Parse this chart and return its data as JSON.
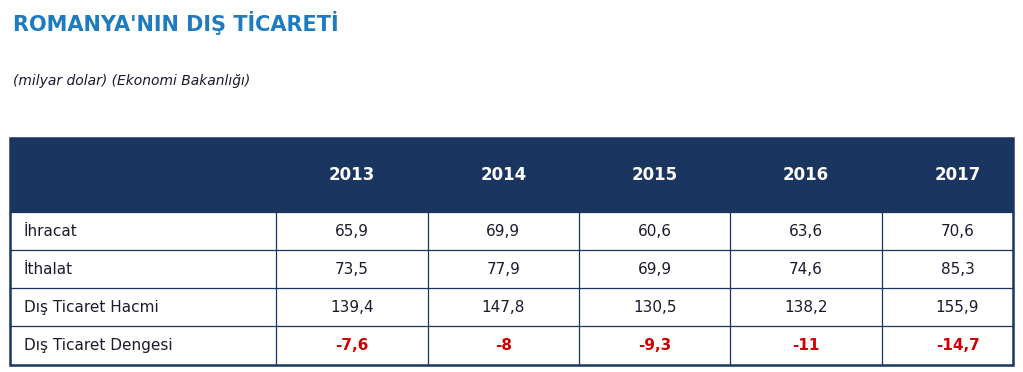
{
  "title": "ROMANYA'NIN DIŞ TİCARETİ",
  "subtitle": "(milyar dolar) (Ekonomi Bakanlığı)",
  "title_color": "#1F7BC0",
  "subtitle_color": "#1a1a2e",
  "header_bg_color": "#1a3560",
  "header_text_color": "#ffffff",
  "cell_text_color": "#1a1a2e",
  "negative_color": "#cc0000",
  "border_color": "#1a3560",
  "years": [
    "2013",
    "2014",
    "2015",
    "2016",
    "2017"
  ],
  "rows": [
    {
      "label": "İhracat",
      "values": [
        "65,9",
        "69,9",
        "60,6",
        "63,6",
        "70,6"
      ],
      "is_negative": false
    },
    {
      "label": "İthalat",
      "values": [
        "73,5",
        "77,9",
        "69,9",
        "74,6",
        "85,3"
      ],
      "is_negative": false
    },
    {
      "label": "Dış Ticaret Hacmi",
      "values": [
        "139,4",
        "147,8",
        "130,5",
        "138,2",
        "155,9"
      ],
      "is_negative": false
    },
    {
      "label": "Dış Ticaret Dengesi",
      "values": [
        "-7,6",
        "-8",
        "-9,3",
        "-11",
        "-14,7"
      ],
      "is_negative": true
    }
  ],
  "fig_width": 10.23,
  "fig_height": 3.72,
  "title_fontsize": 15,
  "subtitle_fontsize": 10,
  "header_fontsize": 12,
  "cell_fontsize": 11,
  "label_fontsize": 11
}
